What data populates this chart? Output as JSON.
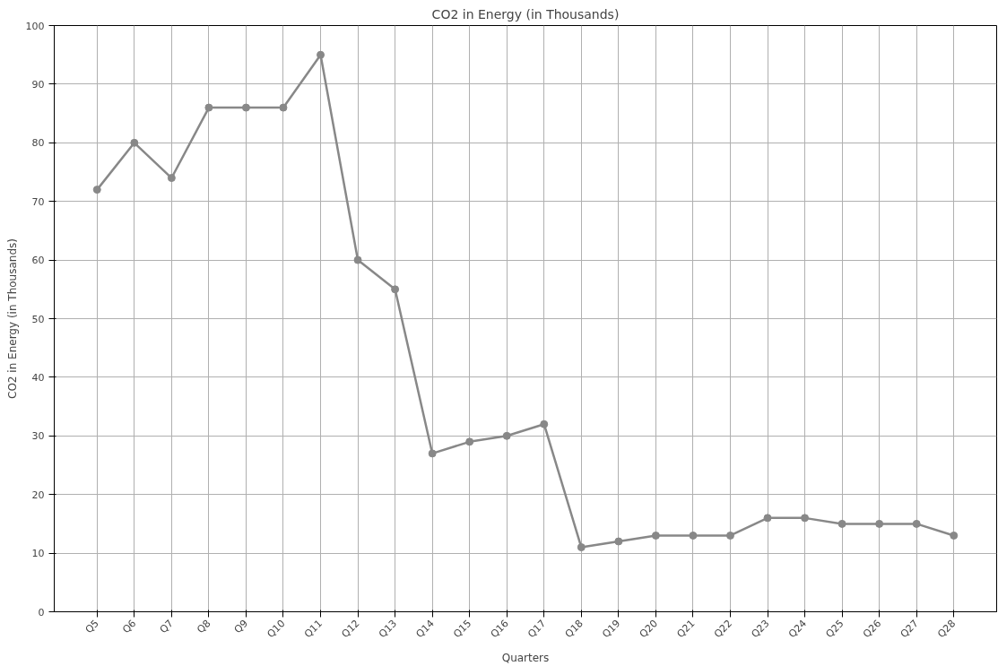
{
  "chart_data": {
    "type": "line",
    "title": "CO2 in Energy (in Thousands)",
    "xlabel": "Quarters",
    "ylabel": "CO2 in Energy (in Thousands)",
    "categories": [
      "Q5",
      "Q6",
      "Q7",
      "Q8",
      "Q9",
      "Q10",
      "Q11",
      "Q12",
      "Q13",
      "Q14",
      "Q15",
      "Q16",
      "Q17",
      "Q18",
      "Q19",
      "Q20",
      "Q21",
      "Q22",
      "Q23",
      "Q24",
      "Q25",
      "Q26",
      "Q27",
      "Q28"
    ],
    "series": [
      {
        "color": "#888888",
        "values": [
          72,
          80,
          74,
          86,
          86,
          86,
          95,
          60,
          55,
          27,
          29,
          30,
          32,
          11,
          12,
          13,
          13,
          13,
          16,
          16,
          15,
          15,
          15,
          13
        ]
      }
    ],
    "ylim": [
      0,
      100
    ],
    "yticks": [
      0,
      10,
      20,
      30,
      40,
      50,
      60,
      70,
      80,
      90,
      100
    ],
    "grid": true,
    "marker": "circle",
    "line_style": "solid"
  }
}
